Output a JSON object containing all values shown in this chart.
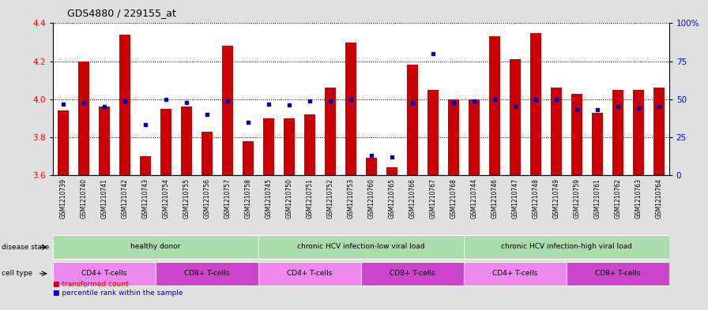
{
  "title": "GDS4880 / 229155_at",
  "samples": [
    "GSM1210739",
    "GSM1210740",
    "GSM1210741",
    "GSM1210742",
    "GSM1210743",
    "GSM1210754",
    "GSM1210755",
    "GSM1210756",
    "GSM1210757",
    "GSM1210758",
    "GSM1210745",
    "GSM1210750",
    "GSM1210751",
    "GSM1210752",
    "GSM1210753",
    "GSM1210760",
    "GSM1210765",
    "GSM1210766",
    "GSM1210767",
    "GSM1210768",
    "GSM1210744",
    "GSM1210746",
    "GSM1210747",
    "GSM1210748",
    "GSM1210749",
    "GSM1210759",
    "GSM1210761",
    "GSM1210762",
    "GSM1210763",
    "GSM1210764"
  ],
  "transformed_count": [
    3.94,
    4.2,
    3.96,
    4.34,
    3.7,
    3.95,
    3.96,
    3.83,
    4.28,
    3.78,
    3.9,
    3.9,
    3.92,
    4.06,
    4.3,
    3.69,
    3.64,
    4.18,
    4.05,
    4.0,
    4.0,
    4.33,
    4.21,
    4.35,
    4.06,
    4.03,
    3.93,
    4.05,
    4.05,
    4.06
  ],
  "percentile_rank": [
    47,
    48,
    45,
    49,
    33,
    50,
    48,
    40,
    49,
    35,
    47,
    46,
    49,
    49,
    50,
    13,
    12,
    48,
    80,
    48,
    49,
    50,
    45,
    50,
    50,
    43,
    43,
    45,
    44,
    45
  ],
  "ylim_left": [
    3.6,
    4.4
  ],
  "ylim_right": [
    0,
    100
  ],
  "yticks_left": [
    3.6,
    3.8,
    4.0,
    4.2,
    4.4
  ],
  "yticks_right": [
    0,
    25,
    50,
    75,
    100
  ],
  "ytick_labels_right": [
    "0",
    "25",
    "50",
    "75",
    "100%"
  ],
  "bar_color": "#cc0000",
  "dot_color": "#0000bb",
  "fig_bg_color": "#e0e0e0",
  "plot_bg_color": "#ffffff",
  "label_bg_color": "#c8c8c8",
  "disease_state_groups": [
    {
      "label": "healthy donor",
      "start": 0,
      "end": 9,
      "color": "#aaddaa"
    },
    {
      "label": "chronic HCV infection-low viral load",
      "start": 10,
      "end": 19,
      "color": "#aaddaa"
    },
    {
      "label": "chronic HCV infection-high viral load",
      "start": 20,
      "end": 29,
      "color": "#aaddaa"
    }
  ],
  "cell_type_groups": [
    {
      "label": "CD4+ T-cells",
      "start": 0,
      "end": 4,
      "color": "#ee88ee"
    },
    {
      "label": "CD8+ T-cells",
      "start": 5,
      "end": 9,
      "color": "#cc44cc"
    },
    {
      "label": "CD4+ T-cells",
      "start": 10,
      "end": 14,
      "color": "#ee88ee"
    },
    {
      "label": "CD8+ T-cells",
      "start": 15,
      "end": 19,
      "color": "#cc44cc"
    },
    {
      "label": "CD4+ T-cells",
      "start": 20,
      "end": 24,
      "color": "#ee88ee"
    },
    {
      "label": "CD8+ T-cells",
      "start": 25,
      "end": 29,
      "color": "#cc44cc"
    }
  ]
}
